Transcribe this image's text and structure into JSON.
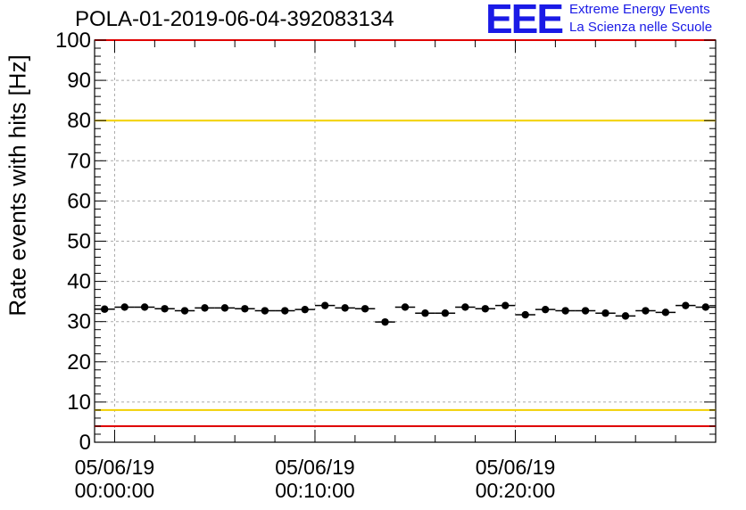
{
  "title": "POLA-01-2019-06-04-392083134",
  "logo": {
    "mark": "EEE",
    "line1": "Extreme Energy Events",
    "line2": "La Scienza nelle Scuole"
  },
  "chart_data": {
    "type": "scatter",
    "title": "POLA-01-2019-06-04-392083134",
    "xlabel": "",
    "ylabel": "Rate events with hits [Hz]",
    "ylim": [
      0,
      100
    ],
    "yticks": [
      0,
      10,
      20,
      30,
      40,
      50,
      60,
      70,
      80,
      90,
      100
    ],
    "xlim_minutes": [
      -1,
      30
    ],
    "xticks": [
      {
        "minute": 0,
        "label": [
          "05/06/19",
          "00:00:00"
        ]
      },
      {
        "minute": 10,
        "label": [
          "05/06/19",
          "00:10:00"
        ]
      },
      {
        "minute": 20,
        "label": [
          "05/06/19",
          "00:20:00"
        ]
      }
    ],
    "grid": true,
    "bin_width_minutes": 1,
    "x_minutes": [
      -0.5,
      0.5,
      1.5,
      2.5,
      3.5,
      4.5,
      5.5,
      6.5,
      7.5,
      8.5,
      9.5,
      10.5,
      11.5,
      12.5,
      13.5,
      14.5,
      15.5,
      16.5,
      17.5,
      18.5,
      19.5,
      20.5,
      21.5,
      22.5,
      23.5,
      24.5,
      25.5,
      26.5,
      27.5,
      28.5,
      29.5
    ],
    "values": [
      33.1,
      33.6,
      33.6,
      33.2,
      32.7,
      33.4,
      33.4,
      33.2,
      32.7,
      32.7,
      33.0,
      34.0,
      33.4,
      33.2,
      29.9,
      33.6,
      32.1,
      32.1,
      33.6,
      33.2,
      34.0,
      31.7,
      33.0,
      32.7,
      32.7,
      32.1,
      31.4,
      32.7,
      32.3,
      34.0,
      33.6
    ],
    "reference_lines": [
      {
        "value": 100,
        "color": "#e00000"
      },
      {
        "value": 80,
        "color": "#f2d000"
      },
      {
        "value": 8,
        "color": "#f2d000"
      },
      {
        "value": 4,
        "color": "#e00000"
      }
    ],
    "marker_color": "#000000"
  }
}
